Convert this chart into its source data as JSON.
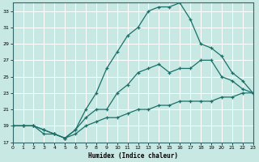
{
  "xlabel": "Humidex (Indice chaleur)",
  "background_color": "#c8e8e4",
  "grid_color": "#b0d8d4",
  "line_color": "#1a7068",
  "line1_x": [
    0,
    1,
    2,
    3,
    4,
    5,
    6,
    7,
    8,
    9,
    10,
    11,
    12,
    13,
    14,
    15,
    16,
    17,
    18,
    19,
    20,
    21,
    22,
    23
  ],
  "line1_y": [
    19,
    19,
    19,
    18,
    18,
    17.5,
    18,
    19,
    19.5,
    20,
    20,
    20.5,
    21,
    21,
    21.5,
    21.5,
    22,
    22,
    22,
    22,
    22.5,
    22.5,
    23,
    23
  ],
  "line2_x": [
    0,
    1,
    2,
    3,
    4,
    5,
    6,
    7,
    8,
    9,
    10,
    11,
    12,
    13,
    14,
    15,
    16,
    17,
    18,
    19,
    20,
    21,
    22,
    23
  ],
  "line2_y": [
    19,
    19,
    19,
    18.5,
    18,
    17.5,
    18.5,
    20,
    21,
    21,
    23,
    24,
    25.5,
    26,
    26.5,
    25.5,
    26,
    26,
    27,
    27,
    25,
    24.5,
    23.5,
    23
  ],
  "line3_x": [
    0,
    1,
    2,
    3,
    4,
    5,
    6,
    7,
    8,
    9,
    10,
    11,
    12,
    13,
    14,
    15,
    16,
    17,
    18,
    19,
    20,
    21,
    22,
    23
  ],
  "line3_y": [
    19,
    19,
    19,
    18.5,
    18,
    17.5,
    18.5,
    21,
    23,
    26,
    28,
    30,
    31,
    33,
    33.5,
    33.5,
    34,
    32,
    29,
    28.5,
    27.5,
    25.5,
    24.5,
    23
  ],
  "ylim": [
    17,
    34
  ],
  "xlim": [
    0,
    23
  ],
  "yticks": [
    17,
    19,
    21,
    23,
    25,
    27,
    29,
    31,
    33
  ],
  "xticks": [
    0,
    1,
    2,
    3,
    4,
    5,
    6,
    7,
    8,
    9,
    10,
    11,
    12,
    13,
    14,
    15,
    16,
    17,
    18,
    19,
    20,
    21,
    22,
    23
  ]
}
